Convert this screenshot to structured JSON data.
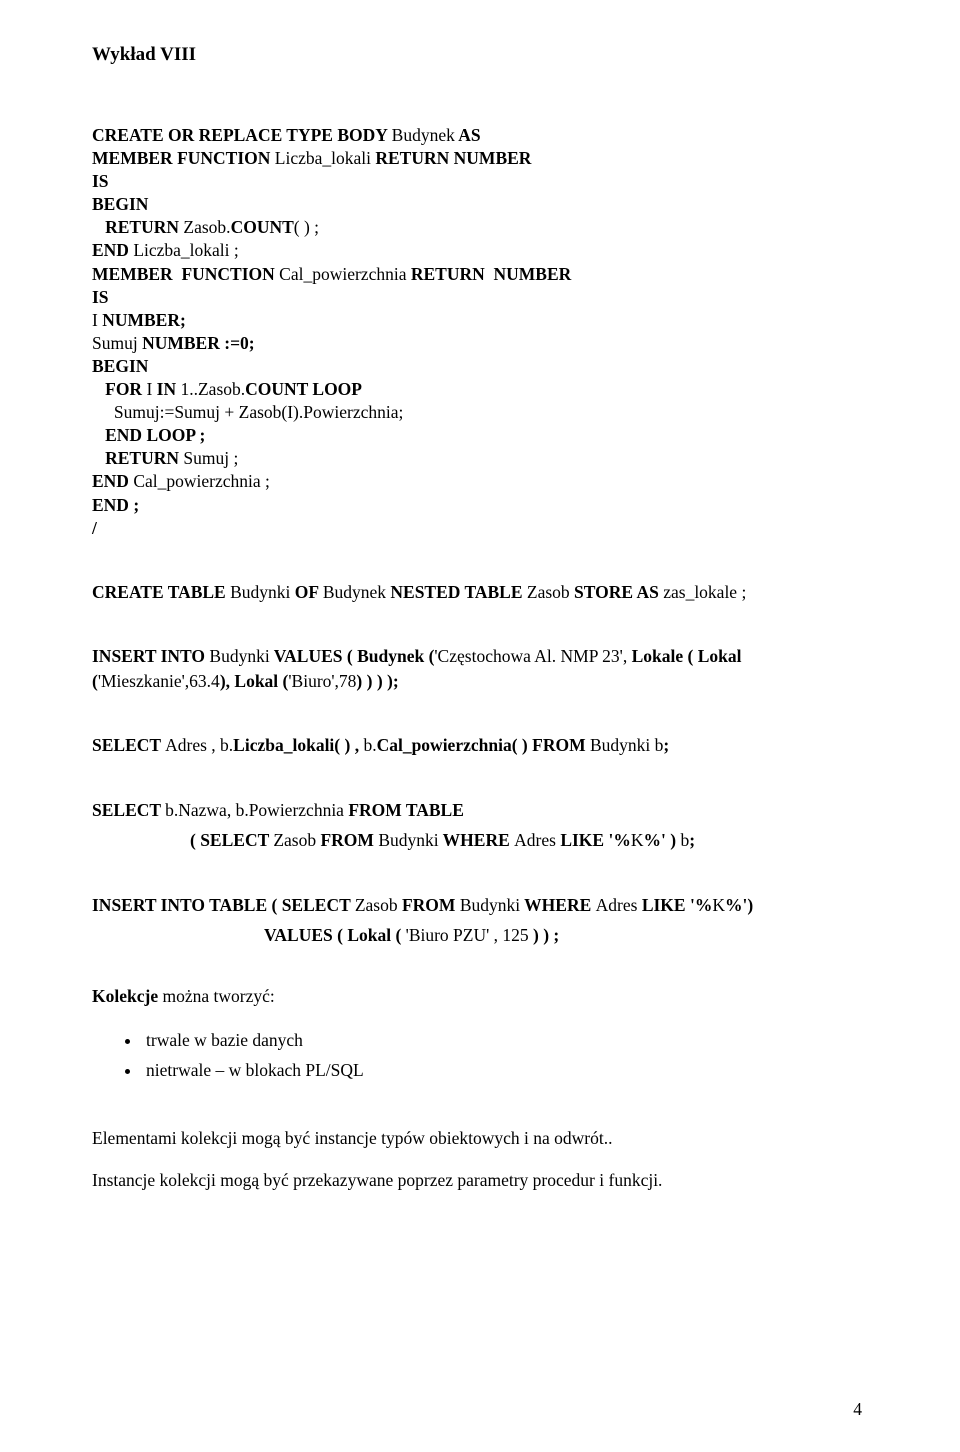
{
  "title": "Wykład VIII",
  "code1": {
    "l1": "CREATE OR REPLACE TYPE BODY ",
    "l1b": "Budynek",
    "l1c": " AS",
    "l2a": "MEMBER FUNCTION ",
    "l2b": "Liczba_lokali",
    "l2c": " RETURN NUMBER",
    "l3": "IS",
    "l4": "BEGIN",
    "l5a": "   RETURN ",
    "l5b": "Zasob.",
    "l5c": "COUNT",
    "l5d": "( ) ;",
    "l6a": "END ",
    "l6b": "Liczba_lokali ;",
    "l7a": "MEMBER  FUNCTION ",
    "l7b": "Cal_powierzchnia",
    "l7c": " RETURN  NUMBER",
    "l8": "IS",
    "l9a": "I ",
    "l9b": "NUMBER;",
    "l10a": "Sumuj ",
    "l10b": "NUMBER :=0;",
    "l11": "BEGIN",
    "l12a": "   FOR ",
    "l12b": "I",
    "l12c": " IN ",
    "l12d": "1..Zasob.",
    "l12e": "COUNT LOOP",
    "l13": "     Sumuj:=Sumuj + Zasob(I).Powierzchnia;",
    "l14": "   END LOOP ;",
    "l15a": "   RETURN ",
    "l15b": "Sumuj ;",
    "l16a": "END ",
    "l16b": "Cal_powierzchnia ;",
    "l17": "END ;",
    "l18": "/"
  },
  "code2": {
    "a": "CREATE  TABLE  ",
    "b": "Budynki",
    "c": " OF  ",
    "d": "Budynek",
    "e": " NESTED TABLE ",
    "f": "Zasob",
    "g": " STORE  AS ",
    "h": "zas_lokale ;"
  },
  "code3": {
    "a": "INSERT  INTO  ",
    "b": "Budynki",
    "c": " VALUES ( Budynek (",
    "d": "'Częstochowa Al. NMP 23', ",
    "e": "Lokale ( Lokal (",
    "f": "'Mieszkanie',63.4",
    "g": "), Lokal (",
    "h": "'Biuro',78",
    "i": ") ) ) );"
  },
  "code4": {
    "a": "SELECT ",
    "b": "Adres ,",
    "c": " b.",
    "d": "Liczba_lokali",
    "e": "( ) , ",
    "f": "b.",
    "g": "Cal_powierzchnia",
    "h": "( ) FROM  ",
    "i": "Budynki b",
    "j": ";"
  },
  "code5": {
    "l1a": "SELECT ",
    "l1b": "b.Nazwa, b.Powierzchnia",
    "l1c": "  FROM  TABLE",
    "l2a": "( SELECT ",
    "l2b": "Zasob",
    "l2c": " FROM ",
    "l2d": "Budynki",
    "l2e": " WHERE ",
    "l2f": "Adres",
    "l2g": " LIKE '%",
    "l2h": "K",
    "l2i": "%' ) ",
    "l2j": "b",
    "l2k": ";"
  },
  "code6": {
    "l1a": "INSERT  INTO  TABLE ( SELECT ",
    "l1b": "Zasob",
    "l1c": " FROM  ",
    "l1d": "Budynki",
    "l1e": " WHERE  ",
    "l1f": "Adres",
    "l1g": " LIKE '%",
    "l1h": "K",
    "l1i": "%')",
    "l2a": "VALUES ( Lokal ( ",
    "l2b": "'Biuro PZU' , 125",
    "l2c": " ) ) ;"
  },
  "kolekcje": {
    "lead_b": "Kolekcje",
    "lead": " można tworzyć:",
    "b1": "trwale w bazie danych",
    "b2": "nietrwale – w blokach PL/SQL"
  },
  "tail": {
    "p1": "Elementami kolekcji mogą być instancje typów obiektowych i na odwrót..",
    "p2": "Instancje kolekcji mogą być przekazywane poprzez parametry procedur i funkcji."
  },
  "page_number": "4"
}
